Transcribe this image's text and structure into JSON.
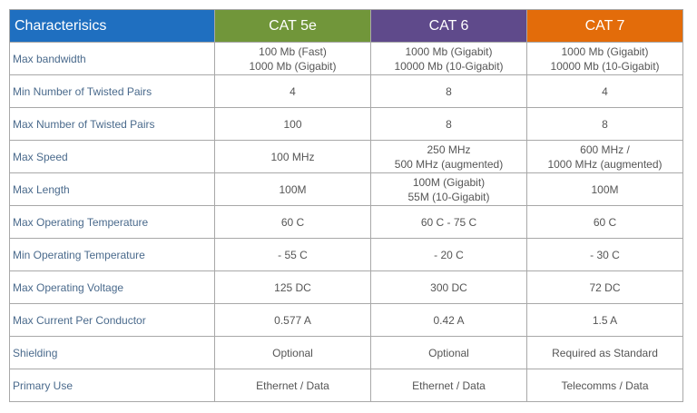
{
  "table": {
    "headers": [
      {
        "label": "Characterisics",
        "color": "#1f6fc0"
      },
      {
        "label": "CAT 5e",
        "color": "#71963a"
      },
      {
        "label": "CAT 6",
        "color": "#5f4a8b"
      },
      {
        "label": "CAT 7",
        "color": "#e36c0a"
      }
    ],
    "rows": [
      {
        "label": "Max bandwidth",
        "cat5e": [
          "100 Mb (Fast)",
          "1000 Mb (Gigabit)"
        ],
        "cat6": [
          "1000 Mb (Gigabit)",
          "10000 Mb (10-Gigabit)"
        ],
        "cat7": [
          "1000 Mb (Gigabit)",
          "10000 Mb (10-Gigabit)"
        ]
      },
      {
        "label": "Min Number of Twisted Pairs",
        "cat5e": [
          "4"
        ],
        "cat6": [
          "8"
        ],
        "cat7": [
          "4"
        ]
      },
      {
        "label": "Max Number of Twisted Pairs",
        "cat5e": [
          "100"
        ],
        "cat6": [
          "8"
        ],
        "cat7": [
          "8"
        ]
      },
      {
        "label": "Max Speed",
        "cat5e": [
          "100 MHz"
        ],
        "cat6": [
          "250 MHz",
          "500 MHz (augmented)"
        ],
        "cat7": [
          "600 MHz /",
          "1000 MHz (augmented)"
        ]
      },
      {
        "label": "Max Length",
        "cat5e": [
          "100M"
        ],
        "cat6": [
          "100M (Gigabit)",
          "55M (10-Gigabit)"
        ],
        "cat7": [
          "100M"
        ]
      },
      {
        "label": "Max Operating Temperature",
        "cat5e": [
          "60 C"
        ],
        "cat6": [
          "60 C - 75 C"
        ],
        "cat7": [
          "60 C"
        ]
      },
      {
        "label": "Min Operating Temperature",
        "cat5e": [
          "- 55 C"
        ],
        "cat6": [
          "- 20 C"
        ],
        "cat7": [
          "- 30 C"
        ]
      },
      {
        "label": "Max Operating Voltage",
        "cat5e": [
          "125 DC"
        ],
        "cat6": [
          "300 DC"
        ],
        "cat7": [
          "72 DC"
        ]
      },
      {
        "label": "Max Current Per Conductor",
        "cat5e": [
          "0.577 A"
        ],
        "cat6": [
          "0.42 A"
        ],
        "cat7": [
          "1.5 A"
        ]
      },
      {
        "label": "Shielding",
        "cat5e": [
          "Optional"
        ],
        "cat6": [
          "Optional"
        ],
        "cat7": [
          "Required as Standard"
        ]
      },
      {
        "label": "Primary Use",
        "cat5e": [
          "Ethernet / Data"
        ],
        "cat6": [
          "Ethernet / Data"
        ],
        "cat7": [
          "Telecomms / Data"
        ]
      }
    ]
  }
}
